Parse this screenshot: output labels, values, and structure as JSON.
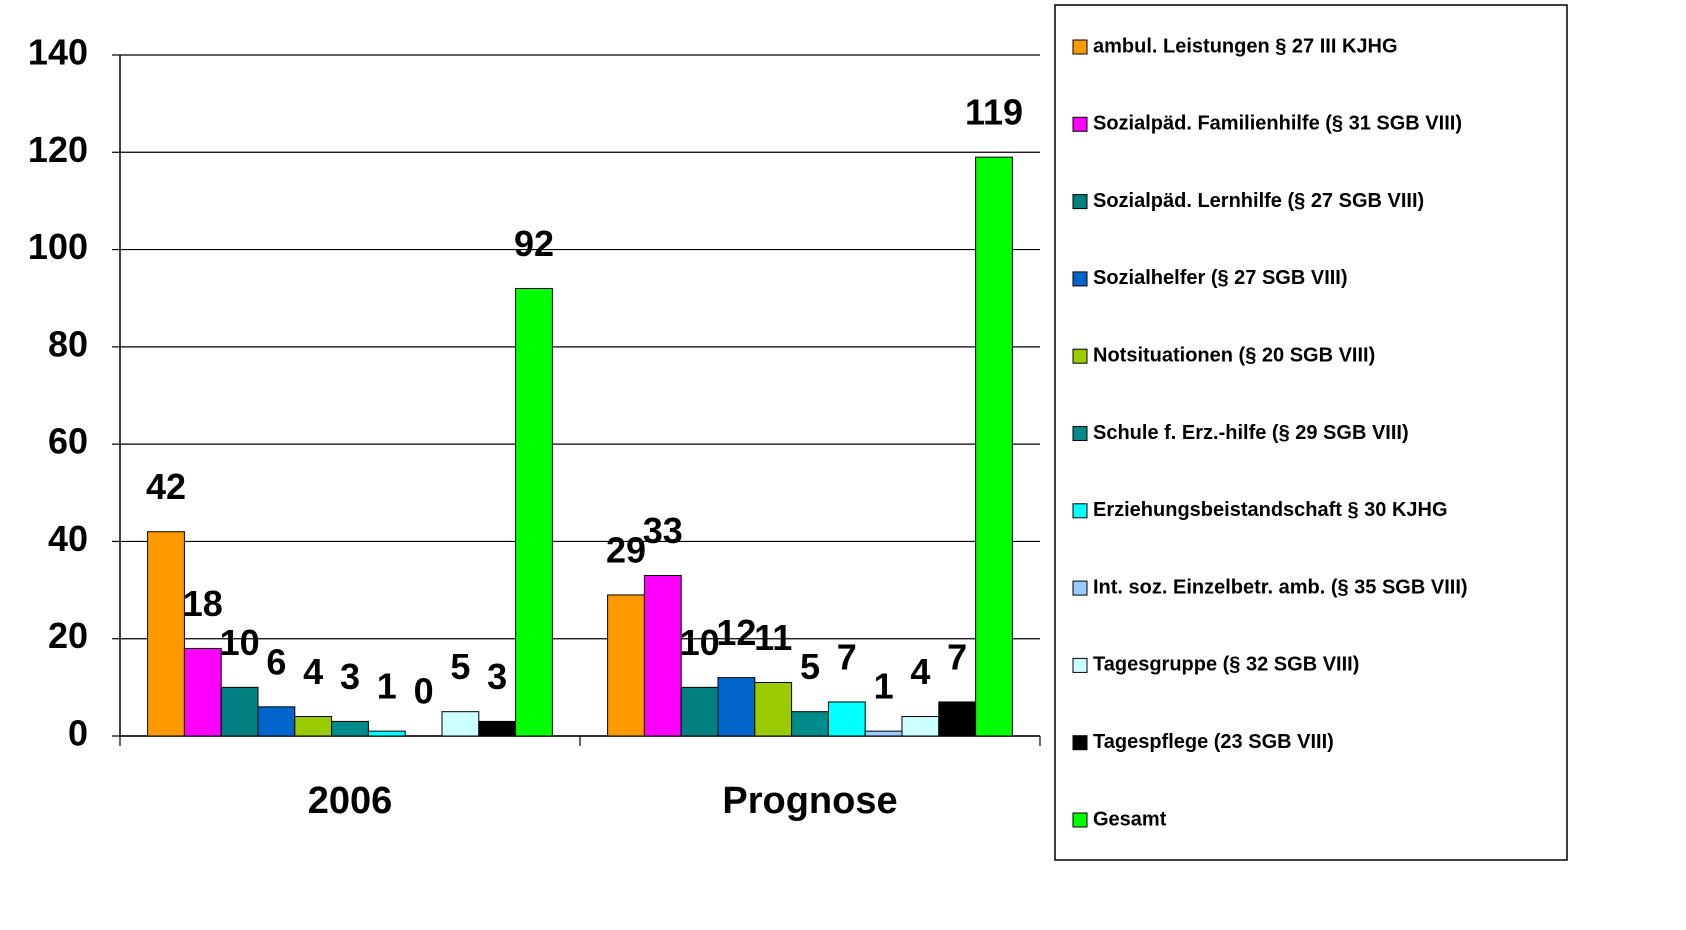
{
  "chart_data": {
    "type": "bar",
    "categories": [
      "2006",
      "Prognose"
    ],
    "series": [
      {
        "name": "ambul. Leistungen § 27 III KJHG",
        "color": "#ff9900",
        "values": [
          42,
          29
        ]
      },
      {
        "name": "Sozialpäd. Familienhilfe (§ 31 SGB VIII)",
        "color": "#ff00ff",
        "values": [
          18,
          33
        ]
      },
      {
        "name": "Sozialpäd. Lernhilfe (§ 27 SGB VIII)",
        "color": "#008080",
        "values": [
          10,
          10
        ]
      },
      {
        "name": "Sozialhelfer (§ 27 SGB VIII)",
        "color": "#0066cc",
        "values": [
          6,
          12
        ]
      },
      {
        "name": "Notsituationen (§ 20 SGB VIII)",
        "color": "#99cc00",
        "values": [
          4,
          11
        ]
      },
      {
        "name": "Schule f. Erz.-hilfe (§ 29 SGB VIII)",
        "color": "#008b8b",
        "values": [
          3,
          5
        ]
      },
      {
        "name": "Erziehungsbeistandschaft § 30 KJHG",
        "color": "#00ffff",
        "values": [
          1,
          7
        ]
      },
      {
        "name": "Int. soz. Einzelbetr. amb. (§ 35 SGB VIII)",
        "color": "#99ccff",
        "values": [
          0,
          1
        ]
      },
      {
        "name": "Tagesgruppe (§ 32 SGB VIII)",
        "color": "#ccffff",
        "values": [
          5,
          4
        ]
      },
      {
        "name": "Tagespflege (23 SGB VIII)",
        "color": "#000000",
        "values": [
          3,
          7
        ]
      },
      {
        "name": "Gesamt",
        "color": "#00ff00",
        "values": [
          92,
          119
        ]
      }
    ],
    "ylim": [
      0,
      140
    ],
    "yticks": [
      0,
      20,
      40,
      60,
      80,
      100,
      120,
      140
    ],
    "grid": true,
    "legend": "right"
  }
}
